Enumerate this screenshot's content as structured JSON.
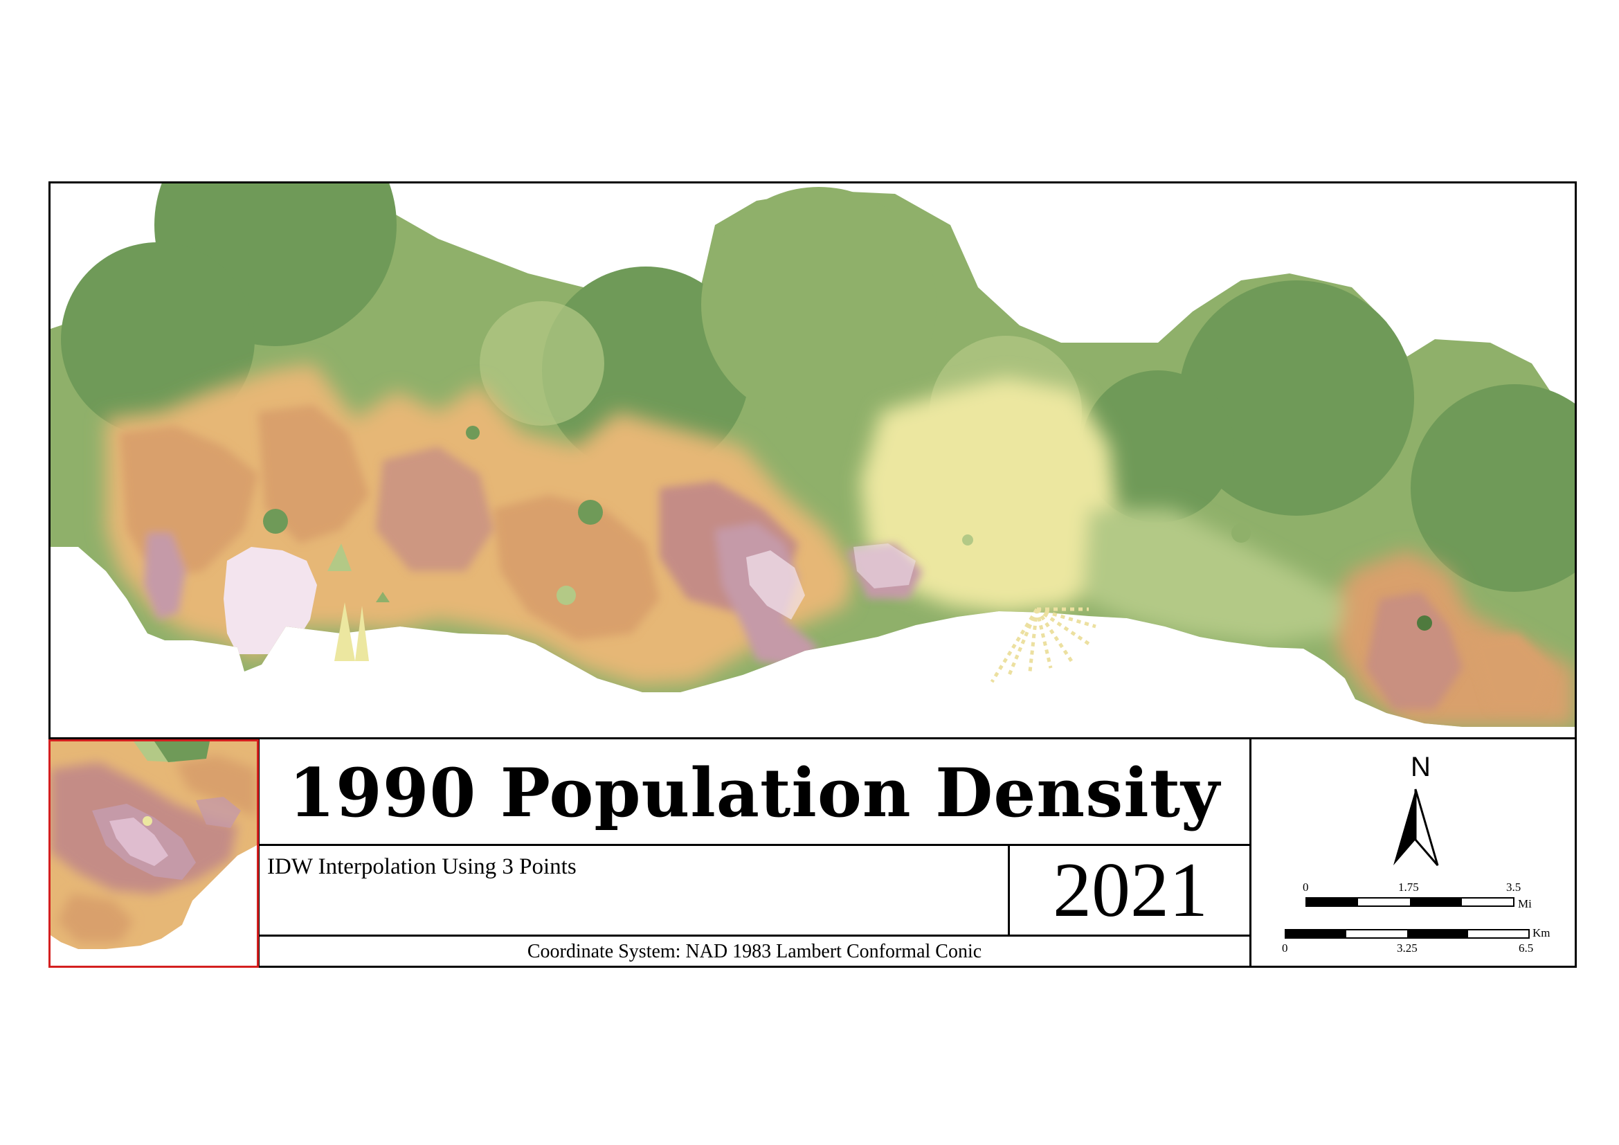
{
  "title": "1990 Population Density",
  "subtitle": "IDW Interpolation Using 3 Points",
  "year": "2021",
  "coordinate_system": "Coordinate System: NAD 1983 Lambert Conformal Conic",
  "north_arrow": {
    "label": "N"
  },
  "scale_bar_miles": {
    "ticks": [
      "0",
      "1.75",
      "3.5"
    ],
    "unit": "Mi"
  },
  "scale_bar_km": {
    "ticks": [
      "0",
      "3.25",
      "6.5"
    ],
    "unit": "Km"
  },
  "colors": {
    "frame": "#000000",
    "inset_border": "#d42020",
    "dark_green": "#6f9a58",
    "mid_green": "#8fb06a",
    "light_green": "#b3c986",
    "yellow": "#ece7a0",
    "orange": "#e6b776",
    "tan": "#d9a06c",
    "rose": "#c48c86",
    "mauve": "#c59aa8",
    "pale_pink": "#f3e4ee"
  }
}
